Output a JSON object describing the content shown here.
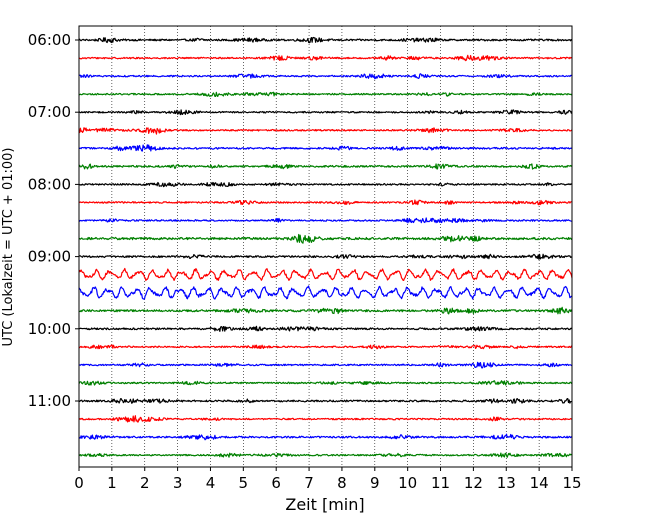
{
  "chart_data": {
    "type": "line",
    "title": "",
    "xlabel": "Zeit  [min]",
    "ylabel": "UTC (Lokalzeit = UTC + 01:00)",
    "xlim": [
      0,
      15
    ],
    "x_ticks": [
      "0",
      "1",
      "2",
      "3",
      "4",
      "5",
      "6",
      "7",
      "8",
      "9",
      "10",
      "11",
      "12",
      "13",
      "14",
      "15"
    ],
    "y_ticks": [
      {
        "label": "06:00",
        "trace": 0
      },
      {
        "label": "07:00",
        "trace": 4
      },
      {
        "label": "08:00",
        "trace": 8
      },
      {
        "label": "09:00",
        "trace": 12
      },
      {
        "label": "10:00",
        "trace": 16
      },
      {
        "label": "11:00",
        "trace": 20
      }
    ],
    "grid": "vertical dotted lines at each minute",
    "trace_colors": [
      "#000000",
      "#ff0000",
      "#0000ff",
      "#008000"
    ],
    "traces": [
      {
        "start": "06:00",
        "amplitude": 0.35
      },
      {
        "start": "06:15",
        "amplitude": 0.3
      },
      {
        "start": "06:30",
        "amplitude": 0.3
      },
      {
        "start": "06:45",
        "amplitude": 0.3
      },
      {
        "start": "07:00",
        "amplitude": 0.3
      },
      {
        "start": "07:15",
        "amplitude": 0.3
      },
      {
        "start": "07:30",
        "amplitude": 0.35
      },
      {
        "start": "07:45",
        "amplitude": 0.35
      },
      {
        "start": "08:00",
        "amplitude": 0.3
      },
      {
        "start": "08:15",
        "amplitude": 0.3
      },
      {
        "start": "08:30",
        "amplitude": 0.3
      },
      {
        "start": "08:45",
        "amplitude": 0.45
      },
      {
        "start": "09:00",
        "amplitude": 0.35
      },
      {
        "start": "09:15",
        "amplitude": 1.0
      },
      {
        "start": "09:30",
        "amplitude": 1.1
      },
      {
        "start": "09:45",
        "amplitude": 0.4
      },
      {
        "start": "10:00",
        "amplitude": 0.35
      },
      {
        "start": "10:15",
        "amplitude": 0.3
      },
      {
        "start": "10:30",
        "amplitude": 0.3
      },
      {
        "start": "10:45",
        "amplitude": 0.3
      },
      {
        "start": "11:00",
        "amplitude": 0.35
      },
      {
        "start": "11:15",
        "amplitude": 0.3
      },
      {
        "start": "11:30",
        "amplitude": 0.35
      },
      {
        "start": "11:45",
        "amplitude": 0.3
      }
    ]
  }
}
